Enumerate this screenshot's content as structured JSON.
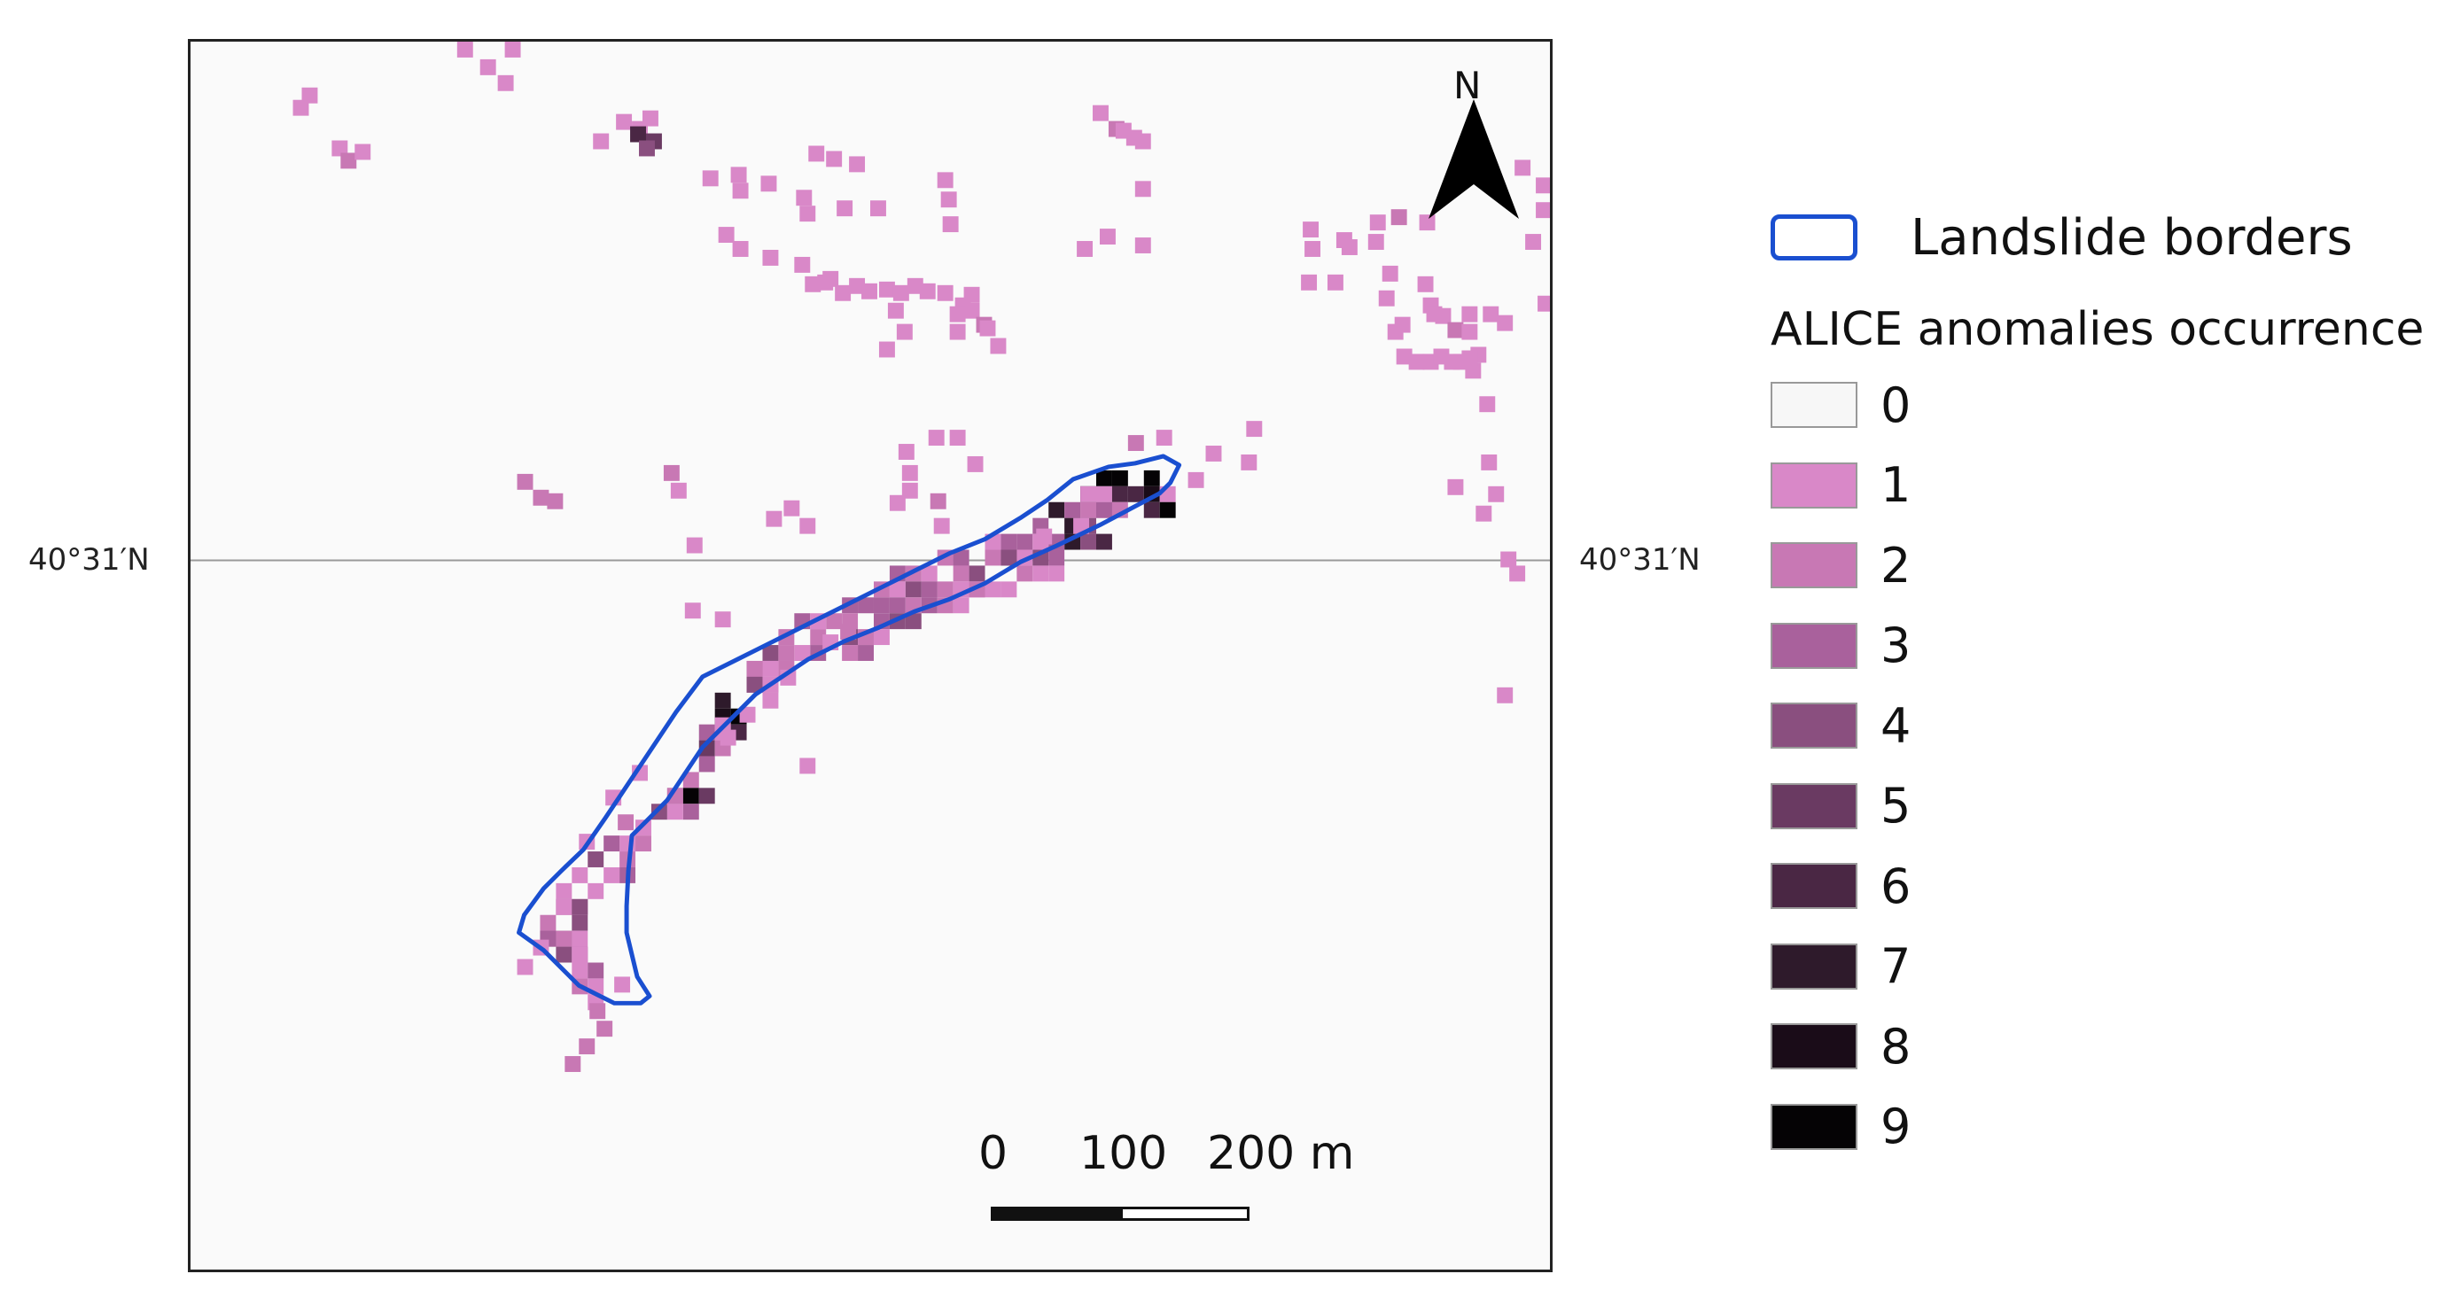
{
  "map": {
    "latitude_label_left": "40°31′N",
    "latitude_label_right": "40°31′N",
    "north_label": "N",
    "scale": {
      "label_0": "0",
      "label_100": "100",
      "label_200": "200 m"
    }
  },
  "legend": {
    "border_label": "Landslide borders",
    "border_color": "#1a4fd0",
    "title": "ALICE anomalies occurrence",
    "classes": [
      {
        "label": "0",
        "color": "#f7f7f7"
      },
      {
        "label": "1",
        "color": "#d988c8"
      },
      {
        "label": "2",
        "color": "#c878b4"
      },
      {
        "label": "3",
        "color": "#a9619c"
      },
      {
        "label": "4",
        "color": "#8a4f7f"
      },
      {
        "label": "5",
        "color": "#6a3a62"
      },
      {
        "label": "6",
        "color": "#4a2744"
      },
      {
        "label": "7",
        "color": "#2e1a2b"
      },
      {
        "label": "8",
        "color": "#1a0c18"
      },
      {
        "label": "9",
        "color": "#050305"
      }
    ]
  }
}
